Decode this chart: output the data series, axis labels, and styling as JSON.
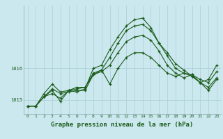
{
  "title": "Graphe pression niveau de la mer (hPa)",
  "background_color": "#cce8ef",
  "grid_color": "#aacdd6",
  "line_color": "#1a5c1a",
  "marker_color": "#1a5c1a",
  "xlim": [
    -0.5,
    23.5
  ],
  "ylim": [
    1014.55,
    1018.0
  ],
  "yticks": [
    1015,
    1016
  ],
  "xticks": [
    0,
    1,
    2,
    3,
    4,
    5,
    6,
    7,
    8,
    9,
    10,
    11,
    12,
    13,
    14,
    15,
    16,
    17,
    18,
    19,
    20,
    21,
    22,
    23
  ],
  "series": [
    [
      1014.8,
      1014.8,
      1015.1,
      1015.2,
      1015.05,
      1015.3,
      1015.35,
      1015.4,
      1015.85,
      1015.95,
      1015.5,
      1016.0,
      1016.35,
      1016.5,
      1016.5,
      1016.35,
      1016.1,
      1015.85,
      1015.75,
      1015.85,
      1015.8,
      1015.65,
      1015.55,
      1015.9
    ],
    [
      1014.8,
      1014.8,
      1015.1,
      1015.3,
      1014.95,
      1015.3,
      1015.4,
      1015.4,
      1015.8,
      1015.9,
      1016.1,
      1016.5,
      1016.85,
      1017.0,
      1017.05,
      1016.9,
      1016.55,
      1016.1,
      1015.85,
      1015.7,
      1015.8,
      1015.55,
      1015.65,
      1016.1
    ],
    [
      1014.8,
      1014.8,
      1015.1,
      1015.35,
      1015.2,
      1015.25,
      1015.3,
      1015.3,
      1015.8,
      1015.95,
      1016.35,
      1016.8,
      1017.2,
      1017.35,
      1017.4,
      1017.2,
      1016.8,
      1016.5,
      1016.15,
      1015.95,
      1015.75,
      1015.55,
      1015.4,
      1015.7
    ],
    [
      1014.8,
      1014.8,
      1015.2,
      1015.5,
      1015.25,
      1015.3,
      1015.25,
      1015.35,
      1016.0,
      1016.1,
      1016.6,
      1017.0,
      1017.35,
      1017.55,
      1017.6,
      1017.3,
      1016.8,
      1016.4,
      1016.0,
      1015.85,
      1015.75,
      1015.55,
      1015.3,
      1015.65
    ]
  ],
  "fontsize_title": 6.5,
  "fontsize_tick": 4.5,
  "marker_size": 3.0,
  "linewidth": 0.8
}
